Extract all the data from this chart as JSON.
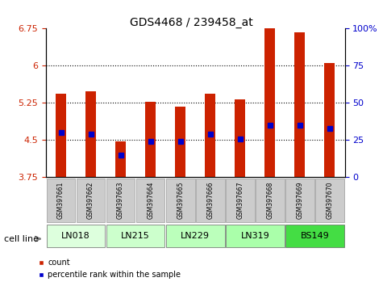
{
  "title": "GDS4468 / 239458_at",
  "samples": [
    "GSM397661",
    "GSM397662",
    "GSM397663",
    "GSM397664",
    "GSM397665",
    "GSM397666",
    "GSM397667",
    "GSM397668",
    "GSM397669",
    "GSM397670"
  ],
  "count_values": [
    5.43,
    5.48,
    4.47,
    5.28,
    5.17,
    5.44,
    5.32,
    6.75,
    6.67,
    6.05
  ],
  "percentile_values": [
    30,
    29,
    15,
    24,
    24,
    29,
    26,
    35,
    35,
    33
  ],
  "y_min": 3.75,
  "y_max": 6.75,
  "y_ticks": [
    3.75,
    4.5,
    5.25,
    6.0,
    6.75
  ],
  "y_tick_labels": [
    "3.75",
    "4.5",
    "5.25",
    "6",
    "6.75"
  ],
  "y2_ticks": [
    0,
    25,
    50,
    75,
    100
  ],
  "y2_tick_labels": [
    "0",
    "25",
    "50",
    "75",
    "100%"
  ],
  "bar_color": "#cc2200",
  "marker_color": "#0000cc",
  "cell_lines": [
    {
      "name": "LN018",
      "samples": [
        0,
        1
      ],
      "color": "#ddffdd"
    },
    {
      "name": "LN215",
      "samples": [
        2,
        3
      ],
      "color": "#ccffcc"
    },
    {
      "name": "LN229",
      "samples": [
        4,
        5
      ],
      "color": "#bbffbb"
    },
    {
      "name": "LN319",
      "samples": [
        6,
        7
      ],
      "color": "#aaffaa"
    },
    {
      "name": "BS149",
      "samples": [
        8,
        9
      ],
      "color": "#44dd44"
    }
  ],
  "cell_line_colors": [
    "#ddf0dd",
    "#ddf0dd",
    "#ccffcc",
    "#aaffaa",
    "#33cc33"
  ],
  "bar_width": 0.35,
  "grid_linestyle": "dotted",
  "left_label_color": "#cc2200",
  "right_label_color": "#0000cc"
}
